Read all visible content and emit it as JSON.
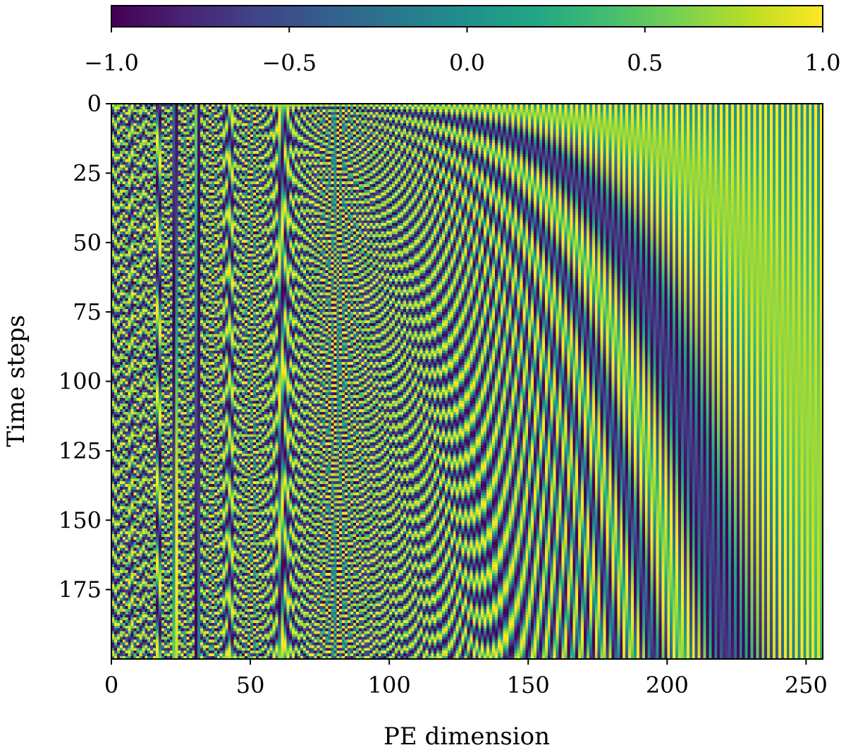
{
  "chart_data": {
    "type": "heatmap",
    "title": "",
    "xlabel": "PE dimension",
    "ylabel": "Time steps",
    "x_range": [
      0,
      256
    ],
    "y_range": [
      0,
      200
    ],
    "y_inverted": true,
    "x_ticks": [
      0,
      50,
      100,
      150,
      200,
      250
    ],
    "x_tick_labels": [
      "0",
      "50",
      "100",
      "150",
      "200",
      "250"
    ],
    "y_ticks": [
      0,
      25,
      50,
      75,
      100,
      125,
      150,
      175
    ],
    "y_tick_labels": [
      "0",
      "25",
      "50",
      "75",
      "100",
      "125",
      "150",
      "175"
    ],
    "colormap": "viridis",
    "colorbar": {
      "placement": "top",
      "range": [
        -1.0,
        1.0
      ],
      "ticks": [
        -1.0,
        -0.5,
        0.0,
        0.5,
        1.0
      ],
      "tick_labels": [
        "−1.0",
        "−0.5",
        "0.0",
        "0.5",
        "1.0"
      ]
    },
    "grid": false
  }
}
